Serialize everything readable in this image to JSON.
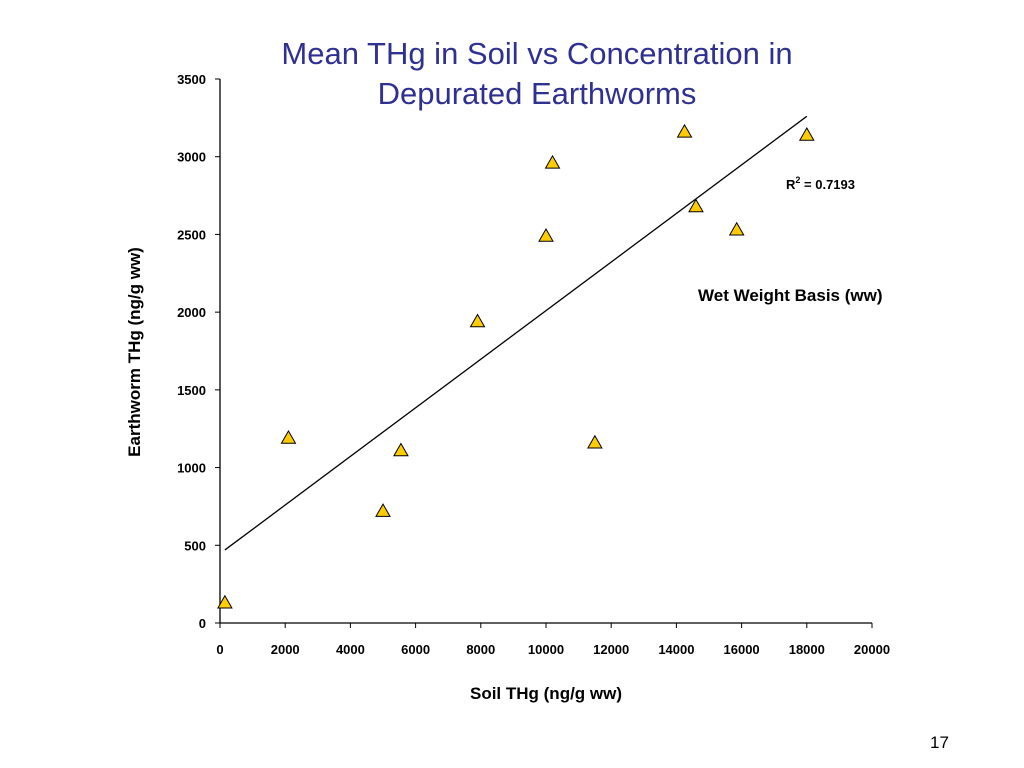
{
  "slide": {
    "page_number": "17"
  },
  "chart_data": {
    "type": "scatter",
    "title_lines": [
      "Mean THg in Soil vs Concentration in",
      "Depurated Earthworms"
    ],
    "xlabel": "Soil THg (ng/g ww)",
    "ylabel": "Earthworm THg (ng/g ww)",
    "xlim": [
      0,
      20000
    ],
    "ylim": [
      0,
      3500
    ],
    "xticks": [
      "0",
      "2000",
      "4000",
      "6000",
      "8000",
      "10000",
      "12000",
      "14000",
      "16000",
      "18000",
      "20000"
    ],
    "yticks": [
      "0",
      "500",
      "1000",
      "1500",
      "2000",
      "2500",
      "3000",
      "3500"
    ],
    "grid": false,
    "legend": "none",
    "marker": {
      "shape": "triangle",
      "fill": "#FFCC00",
      "stroke": "#000000"
    },
    "points": [
      {
        "x": 150,
        "y": 130
      },
      {
        "x": 2100,
        "y": 1190
      },
      {
        "x": 5000,
        "y": 720
      },
      {
        "x": 5550,
        "y": 1110
      },
      {
        "x": 7900,
        "y": 1940
      },
      {
        "x": 10000,
        "y": 2490
      },
      {
        "x": 10200,
        "y": 2960
      },
      {
        "x": 11500,
        "y": 1160
      },
      {
        "x": 14250,
        "y": 3160
      },
      {
        "x": 14600,
        "y": 2680
      },
      {
        "x": 15850,
        "y": 2530
      },
      {
        "x": 18000,
        "y": 3140
      }
    ],
    "trendline": {
      "x": [
        150,
        18000
      ],
      "y": [
        470,
        3260
      ]
    },
    "annotations": {
      "r2_prefix": "R",
      "r2_sup": "2",
      "r2_suffix": " = 0.7193",
      "basis": "Wet Weight Basis (ww)"
    }
  }
}
